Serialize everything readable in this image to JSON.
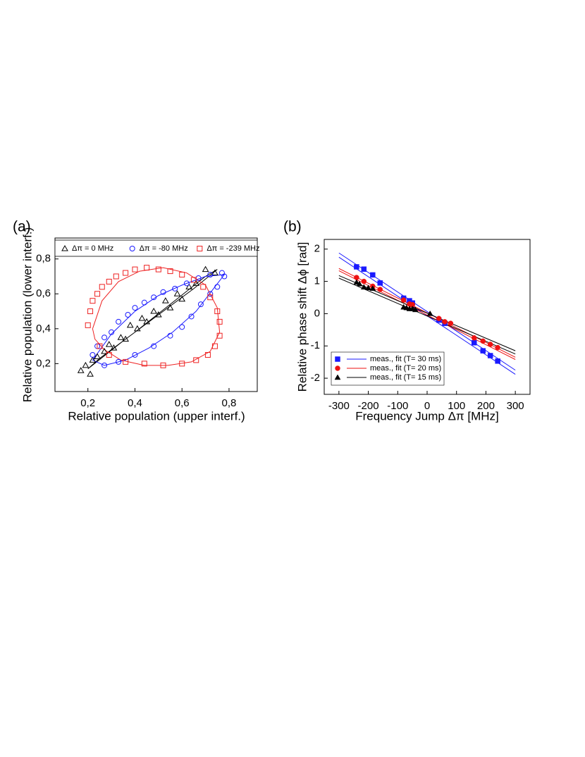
{
  "chart_data": [
    {
      "type": "scatter",
      "panel": "(a)",
      "x_label": "Relative population (upper interf.)",
      "y_label": "Relative population (lower interf.)",
      "xlim": [
        0.06,
        0.92
      ],
      "ylim": [
        0.04,
        0.92
      ],
      "xticks": [
        {
          "value": 0.2,
          "label": "0,2"
        },
        {
          "value": 0.4,
          "label": "0,4"
        },
        {
          "value": 0.6,
          "label": "0,6"
        },
        {
          "value": 0.8,
          "label": "0,8"
        }
      ],
      "yticks": [
        {
          "value": 0.2,
          "label": "0,2"
        },
        {
          "value": 0.4,
          "label": "0,4"
        },
        {
          "value": 0.6,
          "label": "0,6"
        },
        {
          "value": 0.8,
          "label": "0,8"
        }
      ],
      "legend": "top",
      "series": [
        {
          "name": "Δπ = 0 MHz",
          "color": "#000000",
          "marker": "triangle-open",
          "x": [
            0.17,
            0.19,
            0.21,
            0.22,
            0.24,
            0.27,
            0.29,
            0.31,
            0.34,
            0.36,
            0.38,
            0.41,
            0.43,
            0.45,
            0.48,
            0.5,
            0.53,
            0.55,
            0.58,
            0.6,
            0.63,
            0.66,
            0.7,
            0.74
          ],
          "y": [
            0.16,
            0.19,
            0.14,
            0.22,
            0.24,
            0.27,
            0.31,
            0.29,
            0.35,
            0.34,
            0.42,
            0.4,
            0.46,
            0.44,
            0.5,
            0.48,
            0.56,
            0.52,
            0.6,
            0.57,
            0.64,
            0.66,
            0.74,
            0.72
          ],
          "fit": {
            "x": [
              0.2,
              0.35,
              0.5,
              0.65,
              0.75,
              0.7,
              0.55,
              0.4,
              0.25,
              0.2
            ],
            "y": [
              0.17,
              0.33,
              0.48,
              0.63,
              0.74,
              0.7,
              0.54,
              0.38,
              0.23,
              0.17
            ]
          }
        },
        {
          "name": "Δπ = -80 MHz",
          "color": "#1a1aff",
          "marker": "circle-open",
          "x": [
            0.22,
            0.24,
            0.27,
            0.3,
            0.33,
            0.37,
            0.4,
            0.44,
            0.48,
            0.52,
            0.57,
            0.62,
            0.67,
            0.72,
            0.77,
            0.78,
            0.75,
            0.72,
            0.68,
            0.64,
            0.6,
            0.55,
            0.48,
            0.4,
            0.33,
            0.27
          ],
          "y": [
            0.25,
            0.3,
            0.35,
            0.38,
            0.44,
            0.48,
            0.52,
            0.55,
            0.58,
            0.61,
            0.63,
            0.66,
            0.69,
            0.71,
            0.72,
            0.7,
            0.64,
            0.6,
            0.54,
            0.47,
            0.41,
            0.36,
            0.3,
            0.25,
            0.21,
            0.19
          ],
          "fit": {
            "x": [
              0.22,
              0.3,
              0.4,
              0.5,
              0.6,
              0.7,
              0.78,
              0.74,
              0.66,
              0.56,
              0.46,
              0.36,
              0.27,
              0.22
            ],
            "y": [
              0.22,
              0.37,
              0.5,
              0.59,
              0.65,
              0.7,
              0.71,
              0.64,
              0.5,
              0.38,
              0.29,
              0.22,
              0.19,
              0.22
            ]
          }
        },
        {
          "name": "Δπ = -239 MHz",
          "color": "#ee2222",
          "marker": "square-open",
          "x": [
            0.2,
            0.21,
            0.22,
            0.24,
            0.26,
            0.29,
            0.32,
            0.36,
            0.4,
            0.45,
            0.5,
            0.55,
            0.6,
            0.65,
            0.69,
            0.72,
            0.75,
            0.76,
            0.76,
            0.74,
            0.71,
            0.66,
            0.6,
            0.52,
            0.44,
            0.36,
            0.29,
            0.25
          ],
          "y": [
            0.42,
            0.5,
            0.56,
            0.6,
            0.64,
            0.67,
            0.7,
            0.72,
            0.74,
            0.75,
            0.74,
            0.73,
            0.71,
            0.68,
            0.64,
            0.58,
            0.5,
            0.44,
            0.36,
            0.3,
            0.25,
            0.22,
            0.2,
            0.19,
            0.2,
            0.21,
            0.25,
            0.3
          ],
          "fit": {
            "x": [
              0.22,
              0.26,
              0.33,
              0.42,
              0.52,
              0.62,
              0.7,
              0.75,
              0.76,
              0.72,
              0.64,
              0.54,
              0.44,
              0.34,
              0.27,
              0.23,
              0.22
            ],
            "y": [
              0.4,
              0.56,
              0.67,
              0.73,
              0.75,
              0.72,
              0.65,
              0.52,
              0.38,
              0.27,
              0.21,
              0.19,
              0.19,
              0.22,
              0.28,
              0.34,
              0.4
            ]
          }
        }
      ]
    },
    {
      "type": "scatter",
      "panel": "(b)",
      "x_label": "Frequency Jump Δπ [MHz]",
      "y_label": "Relative phase shift Δϕ [rad]",
      "xlim": [
        -350,
        350
      ],
      "ylim": [
        -2.5,
        2.3
      ],
      "xticks": [
        -300,
        -200,
        -100,
        0,
        100,
        200,
        300
      ],
      "yticks": [
        -2,
        -1,
        0,
        1,
        2
      ],
      "legend": "bottom-left",
      "series": [
        {
          "name": "meas., fit (T= 30 ms)",
          "color": "#1a1aff",
          "marker": "square",
          "x": [
            -240,
            -215,
            -185,
            -160,
            -80,
            -60,
            -50,
            40,
            60,
            160,
            190,
            215,
            240
          ],
          "y": [
            1.45,
            1.38,
            1.2,
            0.95,
            0.48,
            0.4,
            0.33,
            -0.2,
            -0.3,
            -0.9,
            -1.15,
            -1.3,
            -1.47
          ],
          "fits": [
            {
              "x": [
                -300,
                300
              ],
              "y": [
                1.88,
                -1.75
              ]
            },
            {
              "x": [
                -300,
                300
              ],
              "y": [
                1.75,
                -1.88
              ]
            }
          ]
        },
        {
          "name": "meas., fit (T= 20 ms)",
          "color": "#ee1111",
          "marker": "circle",
          "x": [
            -240,
            -215,
            -185,
            -160,
            -80,
            -60,
            -50,
            40,
            60,
            80,
            160,
            190,
            215,
            240
          ],
          "y": [
            1.12,
            1.0,
            0.85,
            0.75,
            0.42,
            0.3,
            0.28,
            -0.15,
            -0.25,
            -0.3,
            -0.75,
            -0.85,
            -0.95,
            -1.05
          ],
          "fits": [
            {
              "x": [
                -300,
                300
              ],
              "y": [
                1.4,
                -1.35
              ]
            },
            {
              "x": [
                -300,
                300
              ],
              "y": [
                1.33,
                -1.42
              ]
            }
          ]
        },
        {
          "name": "meas., fit (T= 15 ms)",
          "color": "#000000",
          "marker": "triangle",
          "x": [
            -240,
            -230,
            -215,
            -200,
            -185,
            -80,
            -70,
            -60,
            -50,
            -40,
            10
          ],
          "y": [
            0.97,
            0.92,
            0.82,
            0.8,
            0.78,
            0.2,
            0.18,
            0.15,
            0.15,
            0.12,
            0
          ],
          "fits": [
            {
              "x": [
                -300,
                300
              ],
              "y": [
                1.18,
                -1.15
              ]
            },
            {
              "x": [
                -300,
                300
              ],
              "y": [
                1.1,
                -1.25
              ]
            }
          ]
        }
      ]
    }
  ]
}
